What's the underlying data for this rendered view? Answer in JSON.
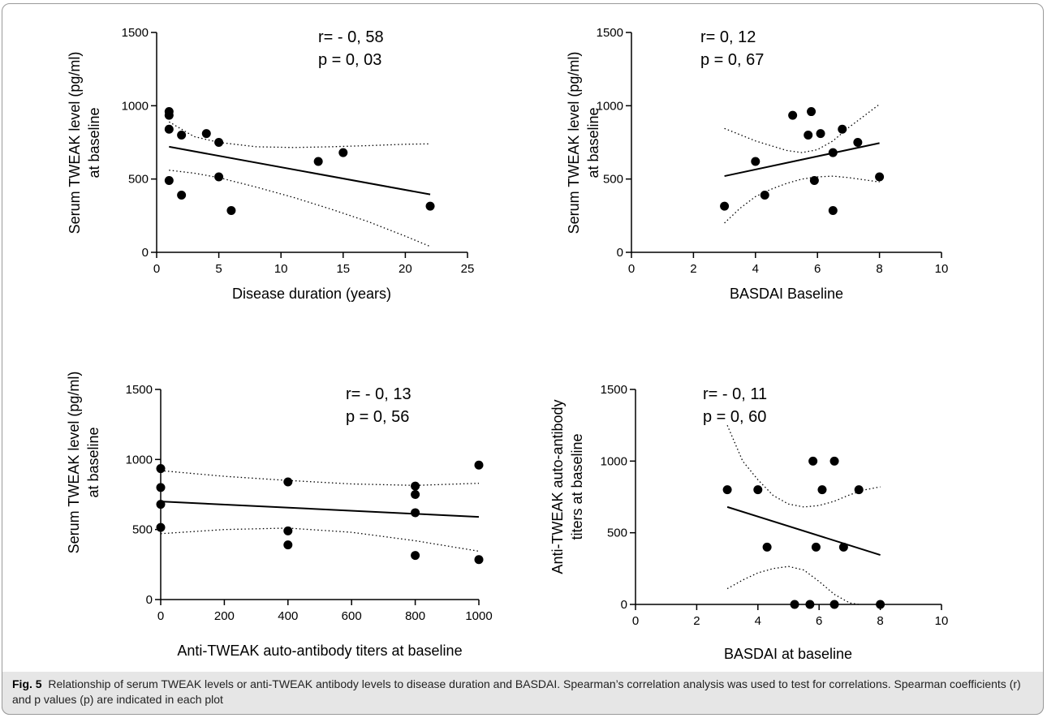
{
  "figure": {
    "caption_label": "Fig. 5",
    "caption_text": "Relationship of serum TWEAK levels or anti-TWEAK antibody levels to disease duration and BASDAI. Spearman’s correlation analysis was used to test for correlations. Spearman coefficients (r) and p values (p) are indicated in each plot"
  },
  "chart_data": [
    {
      "type": "scatter",
      "xlabel": "Disease duration (years)",
      "ylabel": [
        "Serum TWEAK level (pg/ml)",
        "at baseline"
      ],
      "xlim": [
        0,
        25
      ],
      "ylim": [
        0,
        1500
      ],
      "xticks": [
        0,
        5,
        10,
        15,
        20,
        25
      ],
      "yticks": [
        0,
        500,
        1000,
        1500
      ],
      "stats": [
        "r= - 0, 58",
        "p = 0, 03"
      ],
      "points": [
        [
          1,
          960
        ],
        [
          1,
          935
        ],
        [
          1,
          840
        ],
        [
          2,
          800
        ],
        [
          4,
          810
        ],
        [
          5,
          750
        ],
        [
          1,
          490
        ],
        [
          2,
          390
        ],
        [
          5,
          515
        ],
        [
          6,
          285
        ],
        [
          13,
          620
        ],
        [
          15,
          680
        ],
        [
          22,
          315
        ]
      ],
      "fit_line": [
        [
          1,
          720
        ],
        [
          22,
          395
        ]
      ],
      "ci_upper": [
        [
          1,
          890
        ],
        [
          3,
          790
        ],
        [
          5,
          750
        ],
        [
          8,
          720
        ],
        [
          11,
          715
        ],
        [
          14,
          720
        ],
        [
          17,
          728
        ],
        [
          20,
          737
        ],
        [
          22,
          740
        ]
      ],
      "ci_lower": [
        [
          1,
          560
        ],
        [
          3,
          540
        ],
        [
          5,
          510
        ],
        [
          8,
          445
        ],
        [
          11,
          375
        ],
        [
          14,
          295
        ],
        [
          17,
          210
        ],
        [
          20,
          110
        ],
        [
          22,
          40
        ]
      ],
      "grid": false
    },
    {
      "type": "scatter",
      "xlabel": "BASDAI Baseline",
      "ylabel": [
        "Serum TWEAK level (pg/ml)",
        "at baseline"
      ],
      "xlim": [
        0,
        10
      ],
      "ylim": [
        0,
        1500
      ],
      "xticks": [
        0,
        2,
        4,
        6,
        8,
        10
      ],
      "yticks": [
        0,
        500,
        1000,
        1500
      ],
      "stats": [
        "r= 0, 12",
        "p = 0, 67"
      ],
      "points": [
        [
          3,
          315
        ],
        [
          4,
          620
        ],
        [
          4.3,
          390
        ],
        [
          5.2,
          935
        ],
        [
          5.7,
          800
        ],
        [
          5.8,
          960
        ],
        [
          5.9,
          490
        ],
        [
          6.1,
          810
        ],
        [
          6.5,
          680
        ],
        [
          6.5,
          285
        ],
        [
          6.8,
          840
        ],
        [
          7.3,
          750
        ],
        [
          8,
          515
        ]
      ],
      "fit_line": [
        [
          3,
          520
        ],
        [
          8,
          745
        ]
      ],
      "ci_upper": [
        [
          3,
          845
        ],
        [
          4,
          760
        ],
        [
          5,
          695
        ],
        [
          5.5,
          680
        ],
        [
          6,
          700
        ],
        [
          6.5,
          760
        ],
        [
          7,
          850
        ],
        [
          7.5,
          930
        ],
        [
          8,
          1010
        ]
      ],
      "ci_lower": [
        [
          3,
          200
        ],
        [
          3.5,
          300
        ],
        [
          4,
          380
        ],
        [
          4.5,
          430
        ],
        [
          5,
          470
        ],
        [
          5.5,
          500
        ],
        [
          6,
          515
        ],
        [
          6.5,
          520
        ],
        [
          7,
          510
        ],
        [
          7.5,
          495
        ],
        [
          8,
          480
        ]
      ],
      "grid": false
    },
    {
      "type": "scatter",
      "xlabel": "Anti-TWEAK auto-antibody titers at baseline",
      "ylabel": [
        "Serum TWEAK level (pg/ml)",
        "at baseline"
      ],
      "xlim": [
        0,
        1000
      ],
      "ylim": [
        0,
        1500
      ],
      "xticks": [
        0,
        200,
        400,
        600,
        800,
        1000
      ],
      "yticks": [
        0,
        500,
        1000,
        1500
      ],
      "stats": [
        "r= - 0, 13",
        "p = 0, 56"
      ],
      "points": [
        [
          0,
          935
        ],
        [
          0,
          800
        ],
        [
          0,
          680
        ],
        [
          0,
          515
        ],
        [
          400,
          840
        ],
        [
          400,
          490
        ],
        [
          400,
          390
        ],
        [
          800,
          810
        ],
        [
          800,
          750
        ],
        [
          800,
          620
        ],
        [
          800,
          315
        ],
        [
          1000,
          960
        ],
        [
          1000,
          285
        ]
      ],
      "fit_line": [
        [
          0,
          700
        ],
        [
          1000,
          590
        ]
      ],
      "ci_upper": [
        [
          0,
          920
        ],
        [
          200,
          880
        ],
        [
          400,
          850
        ],
        [
          600,
          825
        ],
        [
          800,
          815
        ],
        [
          1000,
          830
        ]
      ],
      "ci_lower": [
        [
          0,
          470
        ],
        [
          200,
          500
        ],
        [
          400,
          510
        ],
        [
          600,
          480
        ],
        [
          800,
          420
        ],
        [
          1000,
          345
        ]
      ],
      "grid": false
    },
    {
      "type": "scatter",
      "xlabel": "BASDAI at baseline",
      "ylabel": [
        "Anti-TWEAK auto-antibody",
        "titers at baseline"
      ],
      "xlim": [
        0,
        10
      ],
      "ylim": [
        0,
        1500
      ],
      "xticks": [
        0,
        2,
        4,
        6,
        8,
        10
      ],
      "yticks": [
        0,
        500,
        1000,
        1500
      ],
      "stats": [
        "r= - 0, 11",
        "p = 0, 60"
      ],
      "points": [
        [
          3,
          800
        ],
        [
          4,
          800
        ],
        [
          4.3,
          400
        ],
        [
          5.2,
          0
        ],
        [
          5.7,
          0
        ],
        [
          5.8,
          1000
        ],
        [
          5.9,
          400
        ],
        [
          6.1,
          800
        ],
        [
          6.5,
          1000
        ],
        [
          6.5,
          0
        ],
        [
          6.8,
          400
        ],
        [
          7.3,
          800
        ],
        [
          8,
          0
        ]
      ],
      "fit_line": [
        [
          3,
          680
        ],
        [
          8,
          345
        ]
      ],
      "ci_upper": [
        [
          3,
          1250
        ],
        [
          3.5,
          1000
        ],
        [
          4,
          870
        ],
        [
          4.5,
          760
        ],
        [
          5,
          700
        ],
        [
          5.5,
          680
        ],
        [
          6,
          690
        ],
        [
          6.5,
          720
        ],
        [
          7,
          765
        ],
        [
          7.5,
          800
        ],
        [
          8,
          820
        ]
      ],
      "ci_lower": [
        [
          3,
          110
        ],
        [
          3.5,
          170
        ],
        [
          4,
          220
        ],
        [
          4.5,
          250
        ],
        [
          5,
          265
        ],
        [
          5.5,
          240
        ],
        [
          6,
          160
        ],
        [
          6.5,
          70
        ],
        [
          7,
          10
        ],
        [
          7.3,
          0
        ]
      ],
      "grid": false
    }
  ]
}
